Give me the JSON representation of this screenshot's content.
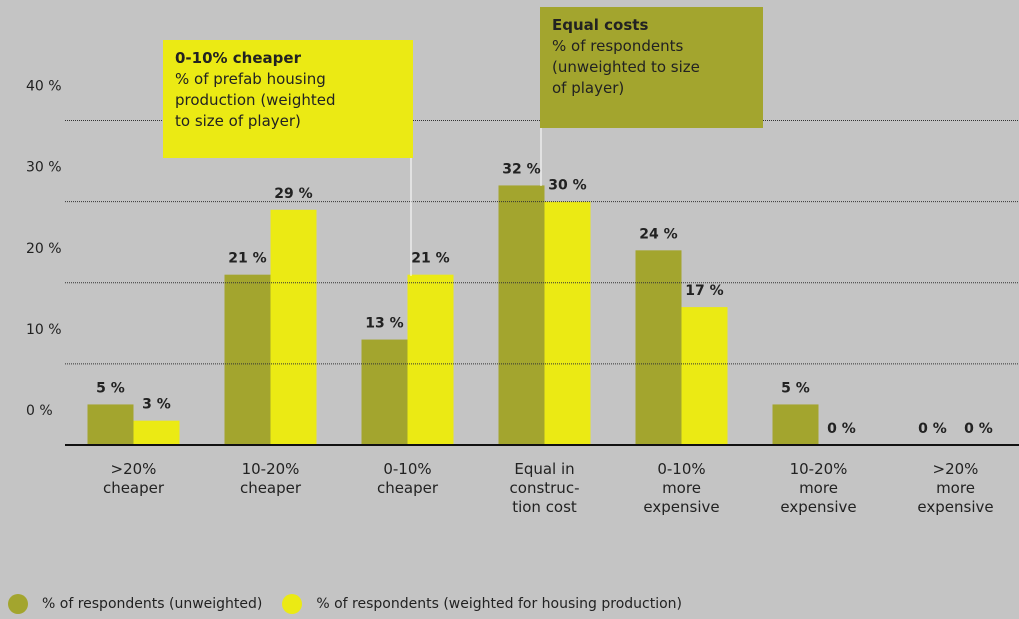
{
  "chart_data": {
    "type": "bar",
    "categories": [
      ">20%\ncheaper",
      "10-20%\ncheaper",
      "0-10%\ncheaper",
      "Equal in\nconstruc-\ntion cost",
      "0-10%\nmore\nexpensive",
      "10-20%\nmore\nexpensive",
      ">20%\nmore\nexpensive"
    ],
    "series": [
      {
        "name": "% of respondents (unweighted)",
        "color": "#a3a52e",
        "values": [
          5,
          21,
          13,
          32,
          24,
          5,
          0
        ],
        "value_labels": [
          "5 %",
          "21 %",
          "13 %",
          "32 %",
          "24 %",
          "5 %",
          "0 %"
        ]
      },
      {
        "name": "% of respondents (weighted for housing production)",
        "color": "#ebea14",
        "values": [
          3,
          29,
          21,
          30,
          17,
          0,
          0
        ],
        "value_labels": [
          "3 %",
          "29 %",
          "21 %",
          "30 %",
          "17 %",
          "0 %",
          "0 %"
        ]
      }
    ],
    "ylim": [
      0,
      45
    ],
    "yticks": [
      {
        "value": 0,
        "label": "0 %"
      },
      {
        "value": 10,
        "label": "10 %"
      },
      {
        "value": 20,
        "label": "20 %"
      },
      {
        "value": 30,
        "label": "30 %"
      },
      {
        "value": 40,
        "label": "40 %"
      }
    ],
    "grid": true,
    "annotations": [
      {
        "title": "0-10% cheaper",
        "text": "% of prefab housing\nproduction (weighted\nto size of player)"
      },
      {
        "title": "Equal costs",
        "text": "% of respondents\n(unweighted to size\nof player)"
      }
    ]
  }
}
